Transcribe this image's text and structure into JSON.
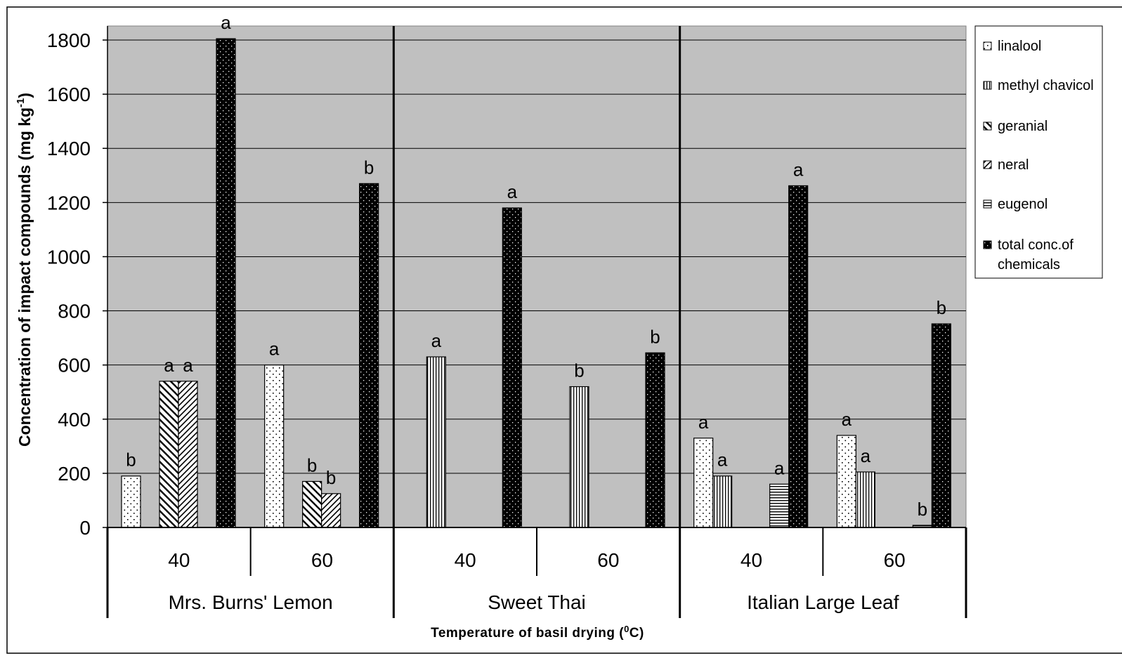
{
  "chart_data": {
    "type": "bar",
    "xlabel": "Temperature of basil drying (",
    "xlabel_sup": "0",
    "xlabel_end": "C)",
    "ylabel": "Concentration of impact compounds (mg kg",
    "ylabel_sup": "-1",
    "ylabel_end": ")",
    "ylim": [
      0,
      1800
    ],
    "yticks": [
      "0",
      "200",
      "400",
      "600",
      "800",
      "1000",
      "1200",
      "1400",
      "1600",
      "1800"
    ],
    "grid": true,
    "legend_position": "right",
    "series": [
      {
        "name": "linalool",
        "key": "linalool"
      },
      {
        "name": "methyl chavicol",
        "key": "methyl"
      },
      {
        "name": "geranial",
        "key": "geranial"
      },
      {
        "name": "neral",
        "key": "neral"
      },
      {
        "name": "eugenol",
        "key": "eugenol"
      },
      {
        "name": "total conc.of",
        "name_line2": "chemicals",
        "key": "total"
      }
    ],
    "groups": [
      {
        "cultivar": "Mrs. Burns' Lemon",
        "temps": [
          {
            "temp": "40",
            "values": {
              "linalool": 190,
              "methyl": 0,
              "geranial": 540,
              "neral": 540,
              "eugenol": 0,
              "total": 1805
            },
            "letters": {
              "linalool": "b",
              "geranial": "a",
              "neral": "a",
              "total": "a"
            }
          },
          {
            "temp": "60",
            "values": {
              "linalool": 600,
              "methyl": 0,
              "geranial": 170,
              "neral": 125,
              "eugenol": 0,
              "total": 1270
            },
            "letters": {
              "linalool": "a",
              "geranial": "b",
              "neral": "b",
              "total": "b"
            }
          }
        ]
      },
      {
        "cultivar": "Sweet Thai",
        "temps": [
          {
            "temp": "40",
            "values": {
              "linalool": 0,
              "methyl": 630,
              "geranial": 0,
              "neral": 0,
              "eugenol": 0,
              "total": 1180
            },
            "letters": {
              "methyl": "a",
              "total": "a"
            }
          },
          {
            "temp": "60",
            "values": {
              "linalool": 0,
              "methyl": 520,
              "geranial": 0,
              "neral": 0,
              "eugenol": 0,
              "total": 645
            },
            "letters": {
              "methyl": "b",
              "total": "b"
            }
          }
        ]
      },
      {
        "cultivar": "Italian Large Leaf",
        "temps": [
          {
            "temp": "40",
            "values": {
              "linalool": 330,
              "methyl": 190,
              "geranial": 0,
              "neral": 0,
              "eugenol": 160,
              "total": 1262
            },
            "letters": {
              "linalool": "a",
              "methyl": "a",
              "eugenol": "a",
              "total": "a"
            }
          },
          {
            "temp": "60",
            "values": {
              "linalool": 340,
              "methyl": 205,
              "geranial": 0,
              "neral": 0,
              "eugenol": 8,
              "total": 752
            },
            "letters": {
              "linalool": "a",
              "methyl": "a",
              "eugenol": "b",
              "total": "b"
            }
          }
        ]
      }
    ]
  }
}
